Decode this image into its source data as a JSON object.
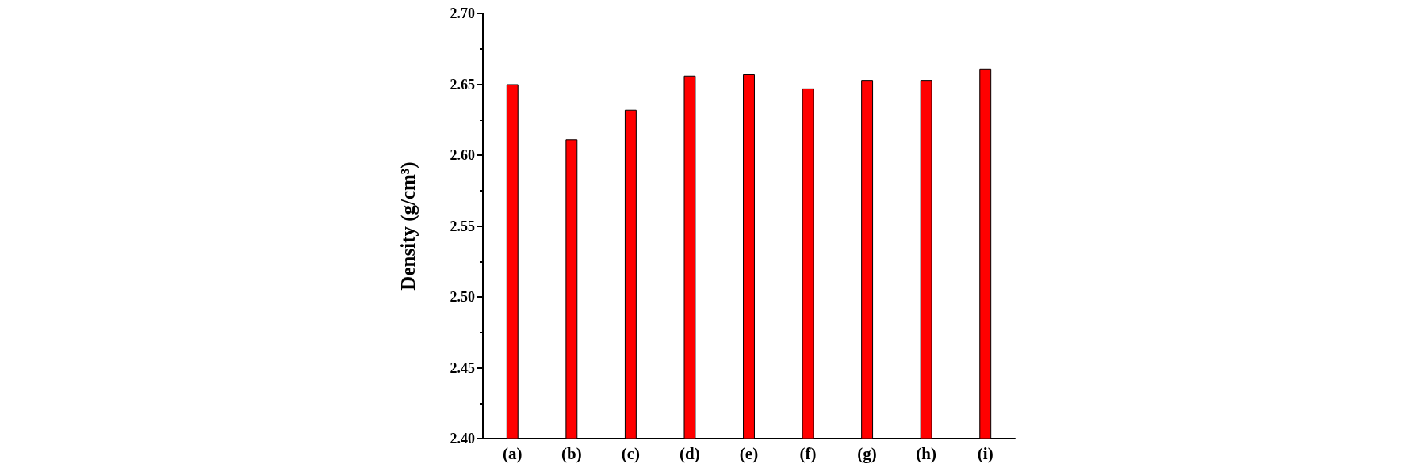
{
  "chart_data": {
    "type": "bar",
    "ylabel": "Density (g/cm³)",
    "categories": [
      "(a)",
      "(b)",
      "(c)",
      "(d)",
      "(e)",
      "(f)",
      "(g)",
      "(h)",
      "(i)"
    ],
    "values": [
      2.65,
      2.611,
      2.632,
      2.656,
      2.657,
      2.647,
      2.653,
      2.653,
      2.661
    ],
    "color": "#ff0000",
    "ylim": [
      2.4,
      2.7
    ],
    "yticks": [
      {
        "value": 2.4,
        "label": "2.40"
      },
      {
        "value": 2.425,
        "label": null
      },
      {
        "value": 2.45,
        "label": "2.45"
      },
      {
        "value": 2.475,
        "label": null
      },
      {
        "value": 2.5,
        "label": "2.50"
      },
      {
        "value": 2.525,
        "label": null
      },
      {
        "value": 2.55,
        "label": "2.55"
      },
      {
        "value": 2.575,
        "label": null
      },
      {
        "value": 2.6,
        "label": "2.60"
      },
      {
        "value": 2.625,
        "label": null
      },
      {
        "value": 2.65,
        "label": "2.65"
      },
      {
        "value": 2.675,
        "label": null
      },
      {
        "value": 2.7,
        "label": "2.70"
      }
    ]
  }
}
